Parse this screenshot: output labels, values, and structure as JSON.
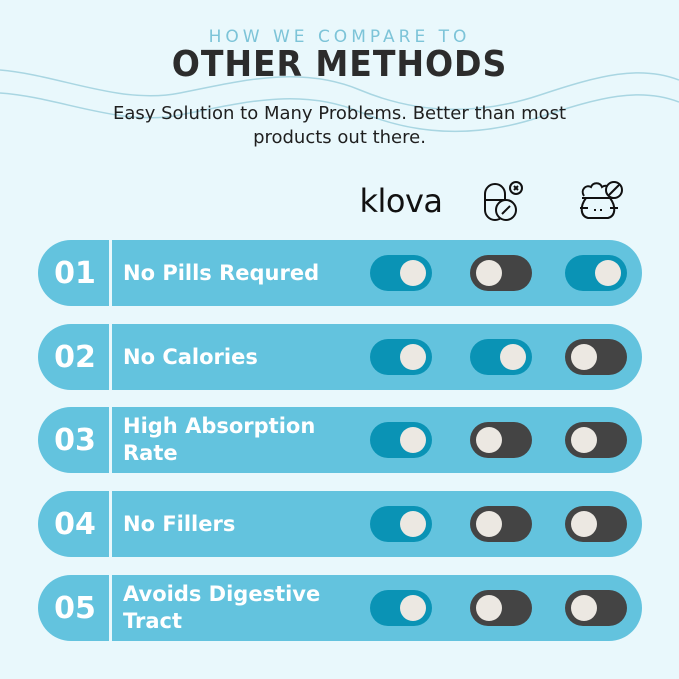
{
  "header": {
    "kicker": "HOW WE COMPARE TO",
    "title": "OTHER METHODS",
    "subtitle": "Easy Solution to Many Problems. Better than most products out there."
  },
  "columns": [
    {
      "label": "klova",
      "type": "logo"
    },
    {
      "icon": "pills-crossed-icon"
    },
    {
      "icon": "food-bag-no-icon"
    }
  ],
  "colors": {
    "background": "#e9f8fc",
    "row": "#63c3de",
    "toggle_on": "#0a93b5",
    "toggle_off": "#444444",
    "knob": "#ece8e2"
  },
  "rows": [
    {
      "number": "01",
      "label": "No Pills Requred",
      "toggles": [
        true,
        false,
        true
      ]
    },
    {
      "number": "02",
      "label": "No Calories",
      "toggles": [
        true,
        true,
        false
      ]
    },
    {
      "number": "03",
      "label": "High Absorption Rate",
      "toggles": [
        true,
        false,
        false
      ]
    },
    {
      "number": "04",
      "label": "No Fillers",
      "toggles": [
        true,
        false,
        false
      ]
    },
    {
      "number": "05",
      "label": "Avoids Digestive Tract",
      "toggles": [
        true,
        false,
        false
      ]
    }
  ]
}
